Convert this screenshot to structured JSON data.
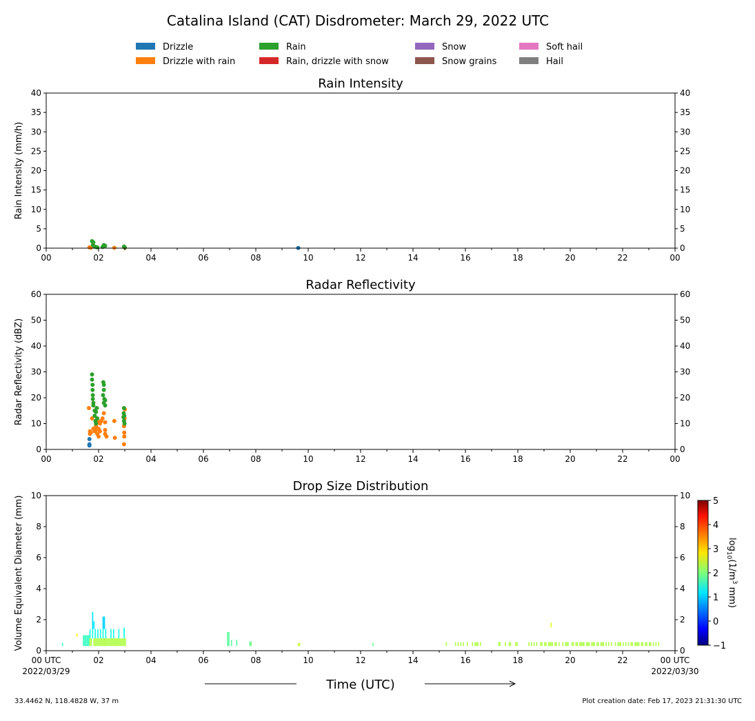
{
  "chart_data": [
    {
      "type": "scatter",
      "title": "Rain Intensity",
      "ylabel": "Rain Intensity (mm/h)",
      "ylim": [
        0,
        40
      ],
      "yticks": [
        0,
        5,
        10,
        15,
        20,
        25,
        30,
        35,
        40
      ],
      "xlim": [
        0,
        24
      ],
      "xticklabels": [
        "00",
        "02",
        "04",
        "06",
        "08",
        "10",
        "12",
        "14",
        "16",
        "18",
        "20",
        "22",
        "00"
      ],
      "series": [
        {
          "name": "Drizzle",
          "points": [
            [
              9.62,
              0.05
            ]
          ]
        },
        {
          "name": "Drizzle with rain",
          "points": [
            [
              1.65,
              0.2
            ],
            [
              2.6,
              0.1
            ],
            [
              3.0,
              0.1
            ],
            [
              1.7,
              0.1
            ]
          ]
        },
        {
          "name": "Rain",
          "points": [
            [
              1.75,
              1.8
            ],
            [
              1.8,
              1.5
            ],
            [
              1.78,
              0.8
            ],
            [
              1.85,
              0.4
            ],
            [
              1.9,
              0.3
            ],
            [
              1.95,
              0.2
            ],
            [
              2.2,
              0.8
            ],
            [
              2.25,
              0.6
            ],
            [
              2.15,
              0.3
            ],
            [
              2.97,
              0.4
            ],
            [
              3.0,
              0.2
            ]
          ]
        }
      ]
    },
    {
      "type": "scatter",
      "title": "Radar Reflectivity",
      "ylabel": "Radar Reflectivity (dBZ)",
      "ylim": [
        0,
        60
      ],
      "yticks": [
        0,
        10,
        20,
        30,
        40,
        50,
        60
      ],
      "xlim": [
        0,
        24
      ],
      "xticklabels": [
        "00",
        "02",
        "04",
        "06",
        "08",
        "10",
        "12",
        "14",
        "16",
        "18",
        "20",
        "22",
        "00"
      ],
      "series": [
        {
          "name": "Drizzle",
          "points": [
            [
              1.65,
              1.5
            ],
            [
              1.65,
              2
            ],
            [
              1.65,
              4
            ]
          ]
        },
        {
          "name": "Drizzle with rain",
          "points": [
            [
              1.63,
              16
            ],
            [
              1.67,
              7
            ],
            [
              1.67,
              6
            ],
            [
              1.7,
              6.5
            ],
            [
              1.75,
              12
            ],
            [
              1.8,
              8
            ],
            [
              1.85,
              7
            ],
            [
              1.9,
              9
            ],
            [
              1.95,
              6
            ],
            [
              1.95,
              11
            ],
            [
              2.0,
              5
            ],
            [
              2.0,
              8
            ],
            [
              2.05,
              7
            ],
            [
              2.1,
              11
            ],
            [
              2.15,
              12
            ],
            [
              2.2,
              14
            ],
            [
              2.25,
              6
            ],
            [
              2.25,
              7.5
            ],
            [
              2.3,
              5
            ],
            [
              2.25,
              10.5
            ],
            [
              2.6,
              11
            ],
            [
              2.62,
              4.5
            ],
            [
              2.97,
              2
            ],
            [
              2.98,
              5
            ],
            [
              2.98,
              6.5
            ],
            [
              2.97,
              9
            ],
            [
              2.99,
              12
            ],
            [
              3.0,
              15.5
            ],
            [
              1.9,
              7.5
            ],
            [
              2.05,
              10
            ]
          ]
        },
        {
          "name": "Rain",
          "points": [
            [
              1.75,
              29
            ],
            [
              1.75,
              27
            ],
            [
              1.77,
              25
            ],
            [
              1.77,
              23
            ],
            [
              1.78,
              21
            ],
            [
              1.78,
              19.5
            ],
            [
              1.8,
              18
            ],
            [
              1.8,
              17
            ],
            [
              1.85,
              15
            ],
            [
              1.85,
              13
            ],
            [
              1.88,
              11
            ],
            [
              1.9,
              14.5
            ],
            [
              1.93,
              16
            ],
            [
              1.95,
              12
            ],
            [
              1.9,
              10
            ],
            [
              2.18,
              26
            ],
            [
              2.2,
              25
            ],
            [
              2.2,
              23
            ],
            [
              2.17,
              21
            ],
            [
              2.22,
              19.5
            ],
            [
              2.2,
              18
            ],
            [
              2.25,
              17
            ],
            [
              2.25,
              19
            ],
            [
              2.97,
              16
            ],
            [
              2.96,
              14
            ],
            [
              2.95,
              12.5
            ],
            [
              2.97,
              11
            ],
            [
              2.99,
              10
            ],
            [
              2.98,
              13
            ]
          ]
        }
      ]
    },
    {
      "type": "heatmap",
      "title": "Drop Size Distribution",
      "ylabel": "Volume Equivalent Diameter (mm)",
      "ylim": [
        0,
        10
      ],
      "yticks": [
        0,
        2,
        4,
        6,
        8,
        10
      ],
      "xlim": [
        0,
        24
      ],
      "xticklabels": [
        "00 UTC",
        "02",
        "04",
        "06",
        "08",
        "10",
        "12",
        "14",
        "16",
        "18",
        "20",
        "22",
        "00 UTC"
      ],
      "xdates": [
        "2022/03/29",
        "2022/03/30"
      ],
      "colorbar": {
        "label": "log10(1/m^3 mm)",
        "range": [
          -1,
          5
        ],
        "ticks": [
          -1,
          0,
          1,
          2,
          3,
          4,
          5
        ]
      },
      "segments": [
        {
          "hours": [
            0.6
          ],
          "d": [
            0.3,
            0.5
          ],
          "v": 1.6
        },
        {
          "hours": [
            1.15
          ],
          "d": [
            0.9,
            1.1
          ],
          "v": 2.8
        },
        {
          "hours": [
            1.4,
            1.45,
            1.5,
            1.55,
            1.6
          ],
          "d": [
            0.3,
            1.0
          ],
          "v": 1.6
        },
        {
          "hours": [
            1.65,
            1.7,
            1.8,
            1.85,
            1.9,
            1.95,
            2.0,
            2.05,
            2.1,
            2.15,
            2.2,
            2.25,
            2.3,
            2.35,
            2.4,
            2.45,
            2.5,
            2.55,
            2.6,
            2.65,
            2.7,
            2.75,
            2.8,
            2.85,
            2.9,
            2.95,
            3.0
          ],
          "d": [
            0.3,
            0.8
          ],
          "v": 2.3
        },
        {
          "hours": [
            1.65,
            1.75,
            1.85,
            1.95,
            2.05,
            2.15,
            2.25,
            2.45,
            2.55,
            2.75,
            2.95
          ],
          "d": [
            0.8,
            1.4
          ],
          "v": 1.4
        },
        {
          "hours": [
            1.75
          ],
          "d": [
            1.4,
            2.5
          ],
          "v": 1.1
        },
        {
          "hours": [
            1.8
          ],
          "d": [
            1.4,
            1.9
          ],
          "v": 1.1
        },
        {
          "hours": [
            2.15,
            2.2
          ],
          "d": [
            1.4,
            2.2
          ],
          "v": 1.0
        },
        {
          "hours": [
            2.95
          ],
          "d": [
            1.0,
            1.5
          ],
          "v": 1.4
        },
        {
          "hours": [
            6.9,
            6.95
          ],
          "d": [
            0.3,
            1.2
          ],
          "v": 1.8
        },
        {
          "hours": [
            7.05,
            7.25
          ],
          "d": [
            0.3,
            0.7
          ],
          "v": 1.8
        },
        {
          "hours": [
            7.75,
            7.8
          ],
          "d": [
            0.3,
            0.6
          ],
          "v": 1.9
        },
        {
          "hours": [
            9.6,
            9.65
          ],
          "d": [
            0.3,
            0.5
          ],
          "v": 2.4
        },
        {
          "hours": [
            12.45
          ],
          "d": [
            0.3,
            0.5
          ],
          "v": 1.9
        },
        {
          "hours": [
            15.25,
            15.6,
            15.7,
            15.8,
            15.9,
            16.05,
            16.25,
            16.35,
            16.4,
            16.45,
            16.55,
            17.25,
            17.3,
            17.5,
            17.65,
            17.7,
            17.9,
            17.95,
            18.4,
            18.5,
            18.6,
            18.7,
            18.85,
            18.9,
            19.0,
            19.05,
            19.15,
            19.2,
            19.25,
            19.3,
            19.4,
            19.45,
            19.55,
            19.7,
            19.8,
            19.85,
            19.9,
            20.05,
            20.1,
            20.2,
            20.25,
            20.35,
            20.4,
            20.45,
            20.5,
            20.6,
            20.65,
            20.7,
            20.8,
            20.85,
            20.9,
            21.0,
            21.05,
            21.15,
            21.2,
            21.25,
            21.35,
            21.45,
            21.55,
            21.7,
            21.8,
            21.85,
            21.9,
            22.0,
            22.1,
            22.2,
            22.3,
            22.35,
            22.45,
            22.5,
            22.55,
            22.6,
            22.7,
            22.75,
            22.85,
            22.9,
            23.0,
            23.05,
            23.15,
            23.25,
            23.35
          ],
          "d": [
            0.3,
            0.55
          ],
          "v": 2.3
        },
        {
          "hours": [
            19.25
          ],
          "d": [
            1.5,
            1.8
          ],
          "v": 2.6
        }
      ]
    }
  ],
  "suptitle": "Catalina Island (CAT) Disdrometer: March 29, 2022 UTC",
  "legend": [
    {
      "label": "Drizzle",
      "color": "#1f77b4"
    },
    {
      "label": "Drizzle with rain",
      "color": "#ff7f0e"
    },
    {
      "label": "Rain",
      "color": "#2ca02c"
    },
    {
      "label": "Rain, drizzle with snow",
      "color": "#d62728"
    },
    {
      "label": "Snow",
      "color": "#9467bd"
    },
    {
      "label": "Snow grains",
      "color": "#8c564b"
    },
    {
      "label": "Soft hail",
      "color": "#e377c2"
    },
    {
      "label": "Hail",
      "color": "#7f7f7f"
    }
  ],
  "xlabel": "Time (UTC)",
  "footer": {
    "location": "33.4462 N, 118.4828 W, 37 m",
    "created": "Plot creation date: Feb 17, 2023 21:31:30 UTC"
  }
}
